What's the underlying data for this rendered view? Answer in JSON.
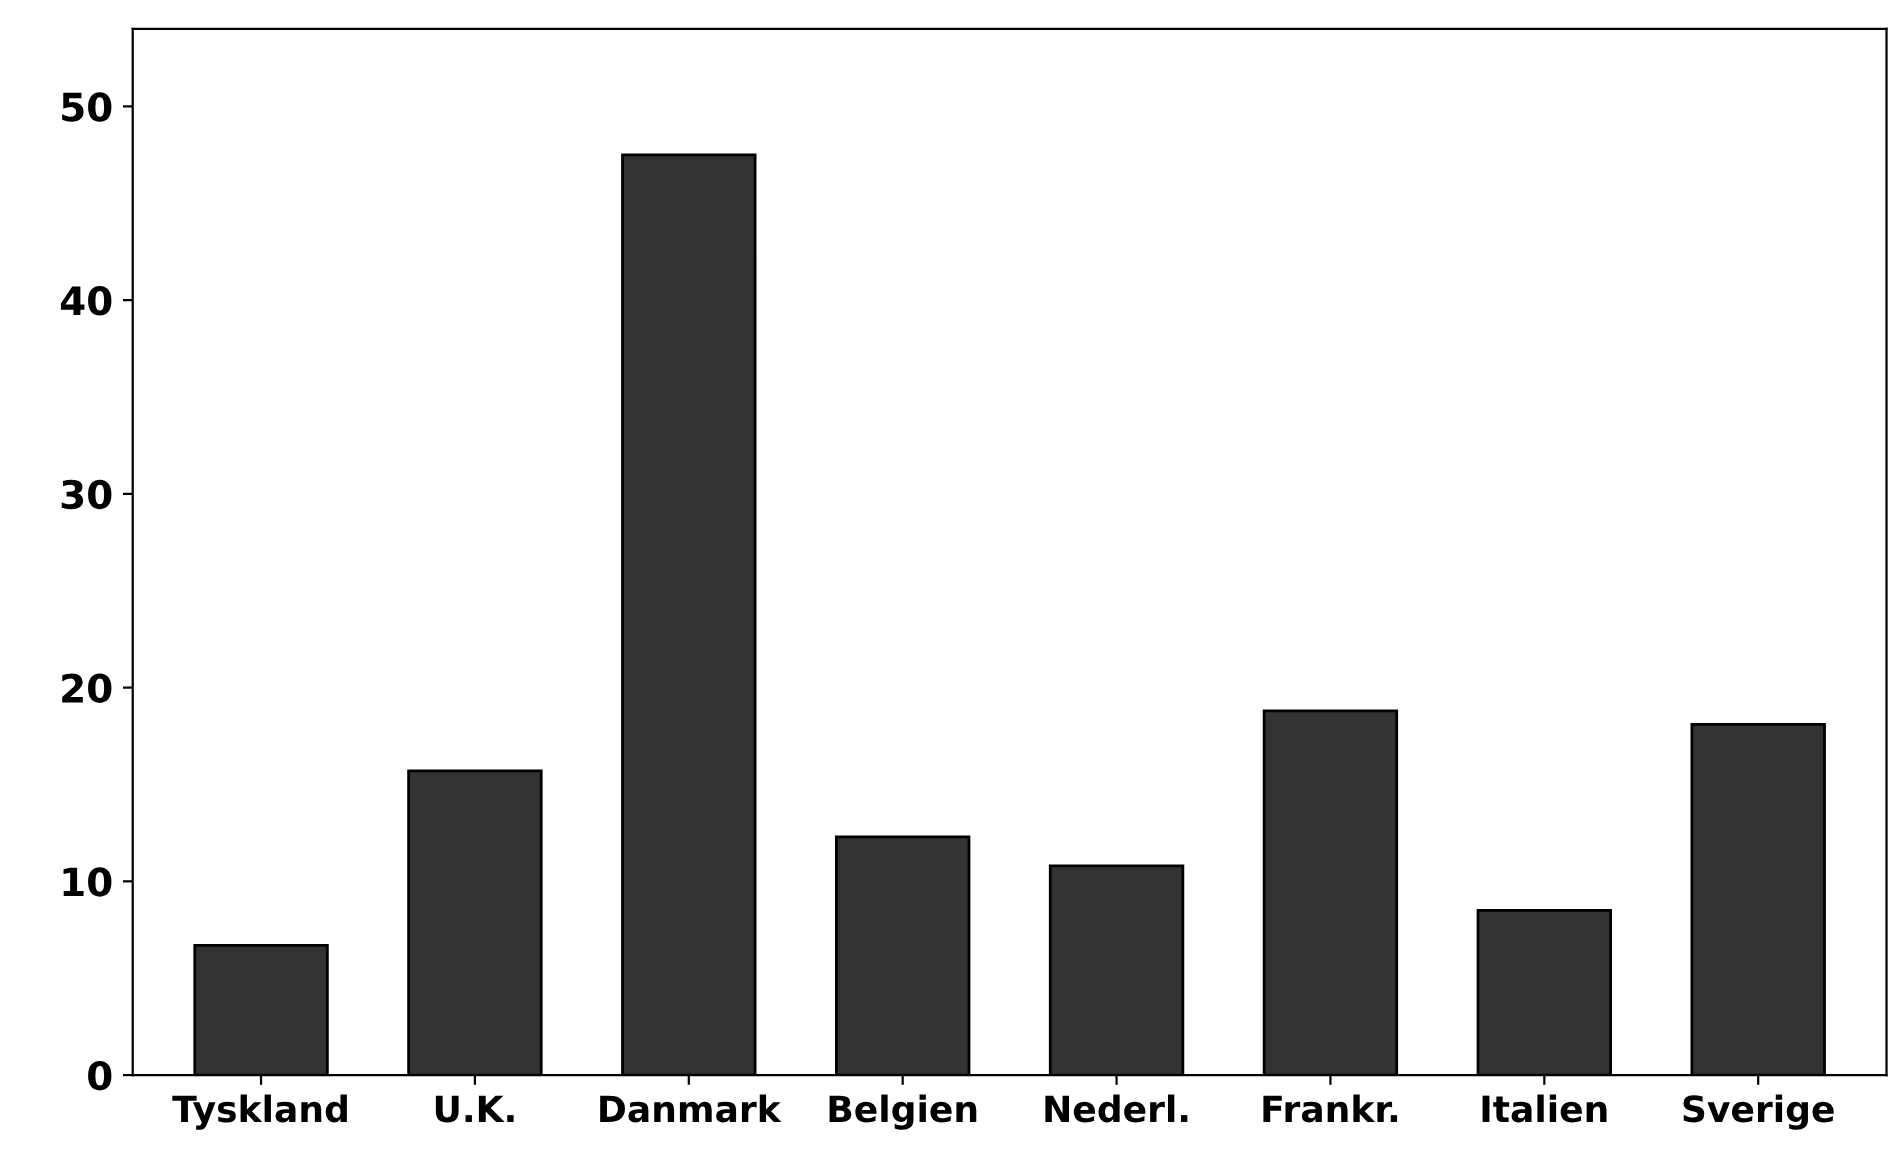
{
  "chart_data": {
    "type": "bar",
    "categories": [
      "Tyskland",
      "U.K.",
      "Danmark",
      "Belgien",
      "Nederl.",
      "Frankr.",
      "Italien",
      "Sverige"
    ],
    "values": [
      6.7,
      15.7,
      47.5,
      12.3,
      10.8,
      18.8,
      8.5,
      18.1
    ],
    "color": "#333333",
    "ylim": [
      0,
      54
    ],
    "yticks": [
      0,
      10,
      20,
      30,
      40,
      50
    ],
    "grid": false
  }
}
